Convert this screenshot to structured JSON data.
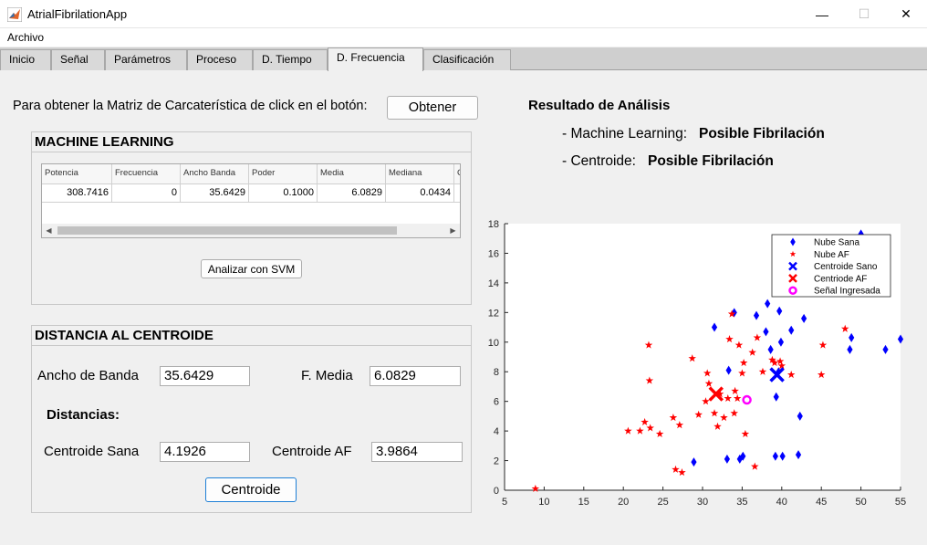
{
  "window": {
    "title": "AtrialFibrilationApp",
    "minimize": "—",
    "maximize": "☐",
    "close": "✕",
    "icon": "matlab-icon"
  },
  "menu": {
    "items": [
      "Archivo"
    ]
  },
  "tabs": [
    "Inicio",
    "Señal",
    "Parámetros",
    "Proceso",
    "D. Tiempo",
    "D. Frecuencia",
    "Clasificación"
  ],
  "active_tab": "D. Frecuencia",
  "instruction": "Para obtener la Matriz de Carcaterística de click en el botón:",
  "obtain_button": "Obtener",
  "ml_panel": {
    "title": "MACHINE LEARNING",
    "columns": [
      "Potencia",
      "Frecuencia",
      "Ancho Banda",
      "Poder",
      "Media",
      "Mediana",
      "C"
    ],
    "row": [
      "308.7416",
      "0",
      "35.6429",
      "0.1000",
      "6.0829",
      "0.0434",
      ""
    ],
    "svm_button": "Analizar con SVM"
  },
  "dc_panel": {
    "title": "DISTANCIA AL CENTROIDE",
    "bandwidth_label": "Ancho de Banda",
    "bandwidth_value": "35.6429",
    "mean_label": "F. Media",
    "mean_value": "6.0829",
    "distances_label": "Distancias:",
    "centroid_healthy_label": "Centroide Sana",
    "centroid_healthy_value": "4.1926",
    "centroid_af_label": "Centroide AF",
    "centroid_af_value": "3.9864",
    "centroid_button": "Centroide"
  },
  "result": {
    "title": "Resultado de Análisis",
    "ml_label": "- Machine Learning:",
    "ml_value": "Posible Fibrilación",
    "centroid_label": "- Centroide:",
    "centroid_value": "Posible Fibrilación"
  },
  "chart_data": {
    "type": "scatter",
    "xlim": [
      5,
      55
    ],
    "ylim": [
      0,
      18
    ],
    "xticks": [
      5,
      10,
      15,
      20,
      25,
      30,
      35,
      40,
      45,
      50,
      55
    ],
    "yticks": [
      0,
      2,
      4,
      6,
      8,
      10,
      12,
      14,
      16,
      18
    ],
    "grid": false,
    "legend_position": "top-right",
    "series": [
      {
        "name": "Nube Sana",
        "marker": "diamond",
        "color": "#0000ff",
        "points": [
          [
            28.9,
            1.9
          ],
          [
            33.1,
            2.1
          ],
          [
            34.7,
            2.1
          ],
          [
            35.1,
            2.3
          ],
          [
            39.2,
            2.3
          ],
          [
            40.1,
            2.3
          ],
          [
            42.1,
            2.4
          ],
          [
            39.3,
            6.3
          ],
          [
            42.3,
            5.0
          ],
          [
            33.3,
            8.1
          ],
          [
            39.6,
            8.0
          ],
          [
            38.6,
            9.5
          ],
          [
            31.5,
            11.0
          ],
          [
            34.0,
            12.0
          ],
          [
            36.8,
            11.8
          ],
          [
            38.2,
            12.6
          ],
          [
            39.7,
            12.1
          ],
          [
            38.0,
            10.7
          ],
          [
            41.2,
            10.8
          ],
          [
            42.8,
            11.6
          ],
          [
            39.9,
            10.0
          ],
          [
            48.8,
            10.3
          ],
          [
            48.6,
            9.5
          ],
          [
            53.1,
            9.5
          ],
          [
            55.0,
            10.2
          ],
          [
            50.0,
            17.3
          ]
        ]
      },
      {
        "name": "Nube AF",
        "marker": "star",
        "color": "#ff0000",
        "points": [
          [
            8.9,
            0.1
          ],
          [
            20.6,
            4.0
          ],
          [
            22.1,
            4.0
          ],
          [
            22.7,
            4.6
          ],
          [
            23.4,
            4.2
          ],
          [
            24.6,
            3.8
          ],
          [
            23.2,
            9.8
          ],
          [
            23.3,
            7.4
          ],
          [
            26.3,
            4.9
          ],
          [
            26.6,
            1.4
          ],
          [
            27.4,
            1.2
          ],
          [
            27.1,
            4.4
          ],
          [
            28.7,
            8.9
          ],
          [
            29.5,
            5.1
          ],
          [
            30.4,
            6.0
          ],
          [
            30.6,
            7.9
          ],
          [
            30.8,
            7.2
          ],
          [
            31.5,
            5.2
          ],
          [
            31.9,
            4.3
          ],
          [
            32.2,
            6.5
          ],
          [
            32.7,
            4.9
          ],
          [
            33.2,
            6.2
          ],
          [
            33.4,
            10.2
          ],
          [
            33.7,
            11.9
          ],
          [
            34.1,
            6.7
          ],
          [
            34.4,
            6.2
          ],
          [
            34.6,
            9.8
          ],
          [
            35.0,
            7.9
          ],
          [
            35.4,
            3.8
          ],
          [
            35.2,
            8.6
          ],
          [
            36.3,
            9.3
          ],
          [
            36.6,
            1.6
          ],
          [
            36.9,
            10.3
          ],
          [
            37.6,
            8.0
          ],
          [
            38.8,
            8.8
          ],
          [
            39.1,
            8.6
          ],
          [
            39.8,
            8.7
          ],
          [
            40.0,
            8.4
          ],
          [
            41.2,
            7.8
          ],
          [
            45.2,
            9.8
          ],
          [
            45.0,
            7.8
          ],
          [
            48.0,
            10.9
          ],
          [
            34.0,
            5.2
          ]
        ]
      },
      {
        "name": "Centroide Sano",
        "marker": "x",
        "color": "#0000ff",
        "points": [
          [
            39.4,
            7.8
          ]
        ]
      },
      {
        "name": "Centriode AF",
        "marker": "x",
        "color": "#ff0000",
        "points": [
          [
            31.7,
            6.5
          ]
        ]
      },
      {
        "name": "Señal Ingresada",
        "marker": "circle",
        "color": "#ff00ff",
        "points": [
          [
            35.6,
            6.1
          ]
        ]
      }
    ]
  }
}
